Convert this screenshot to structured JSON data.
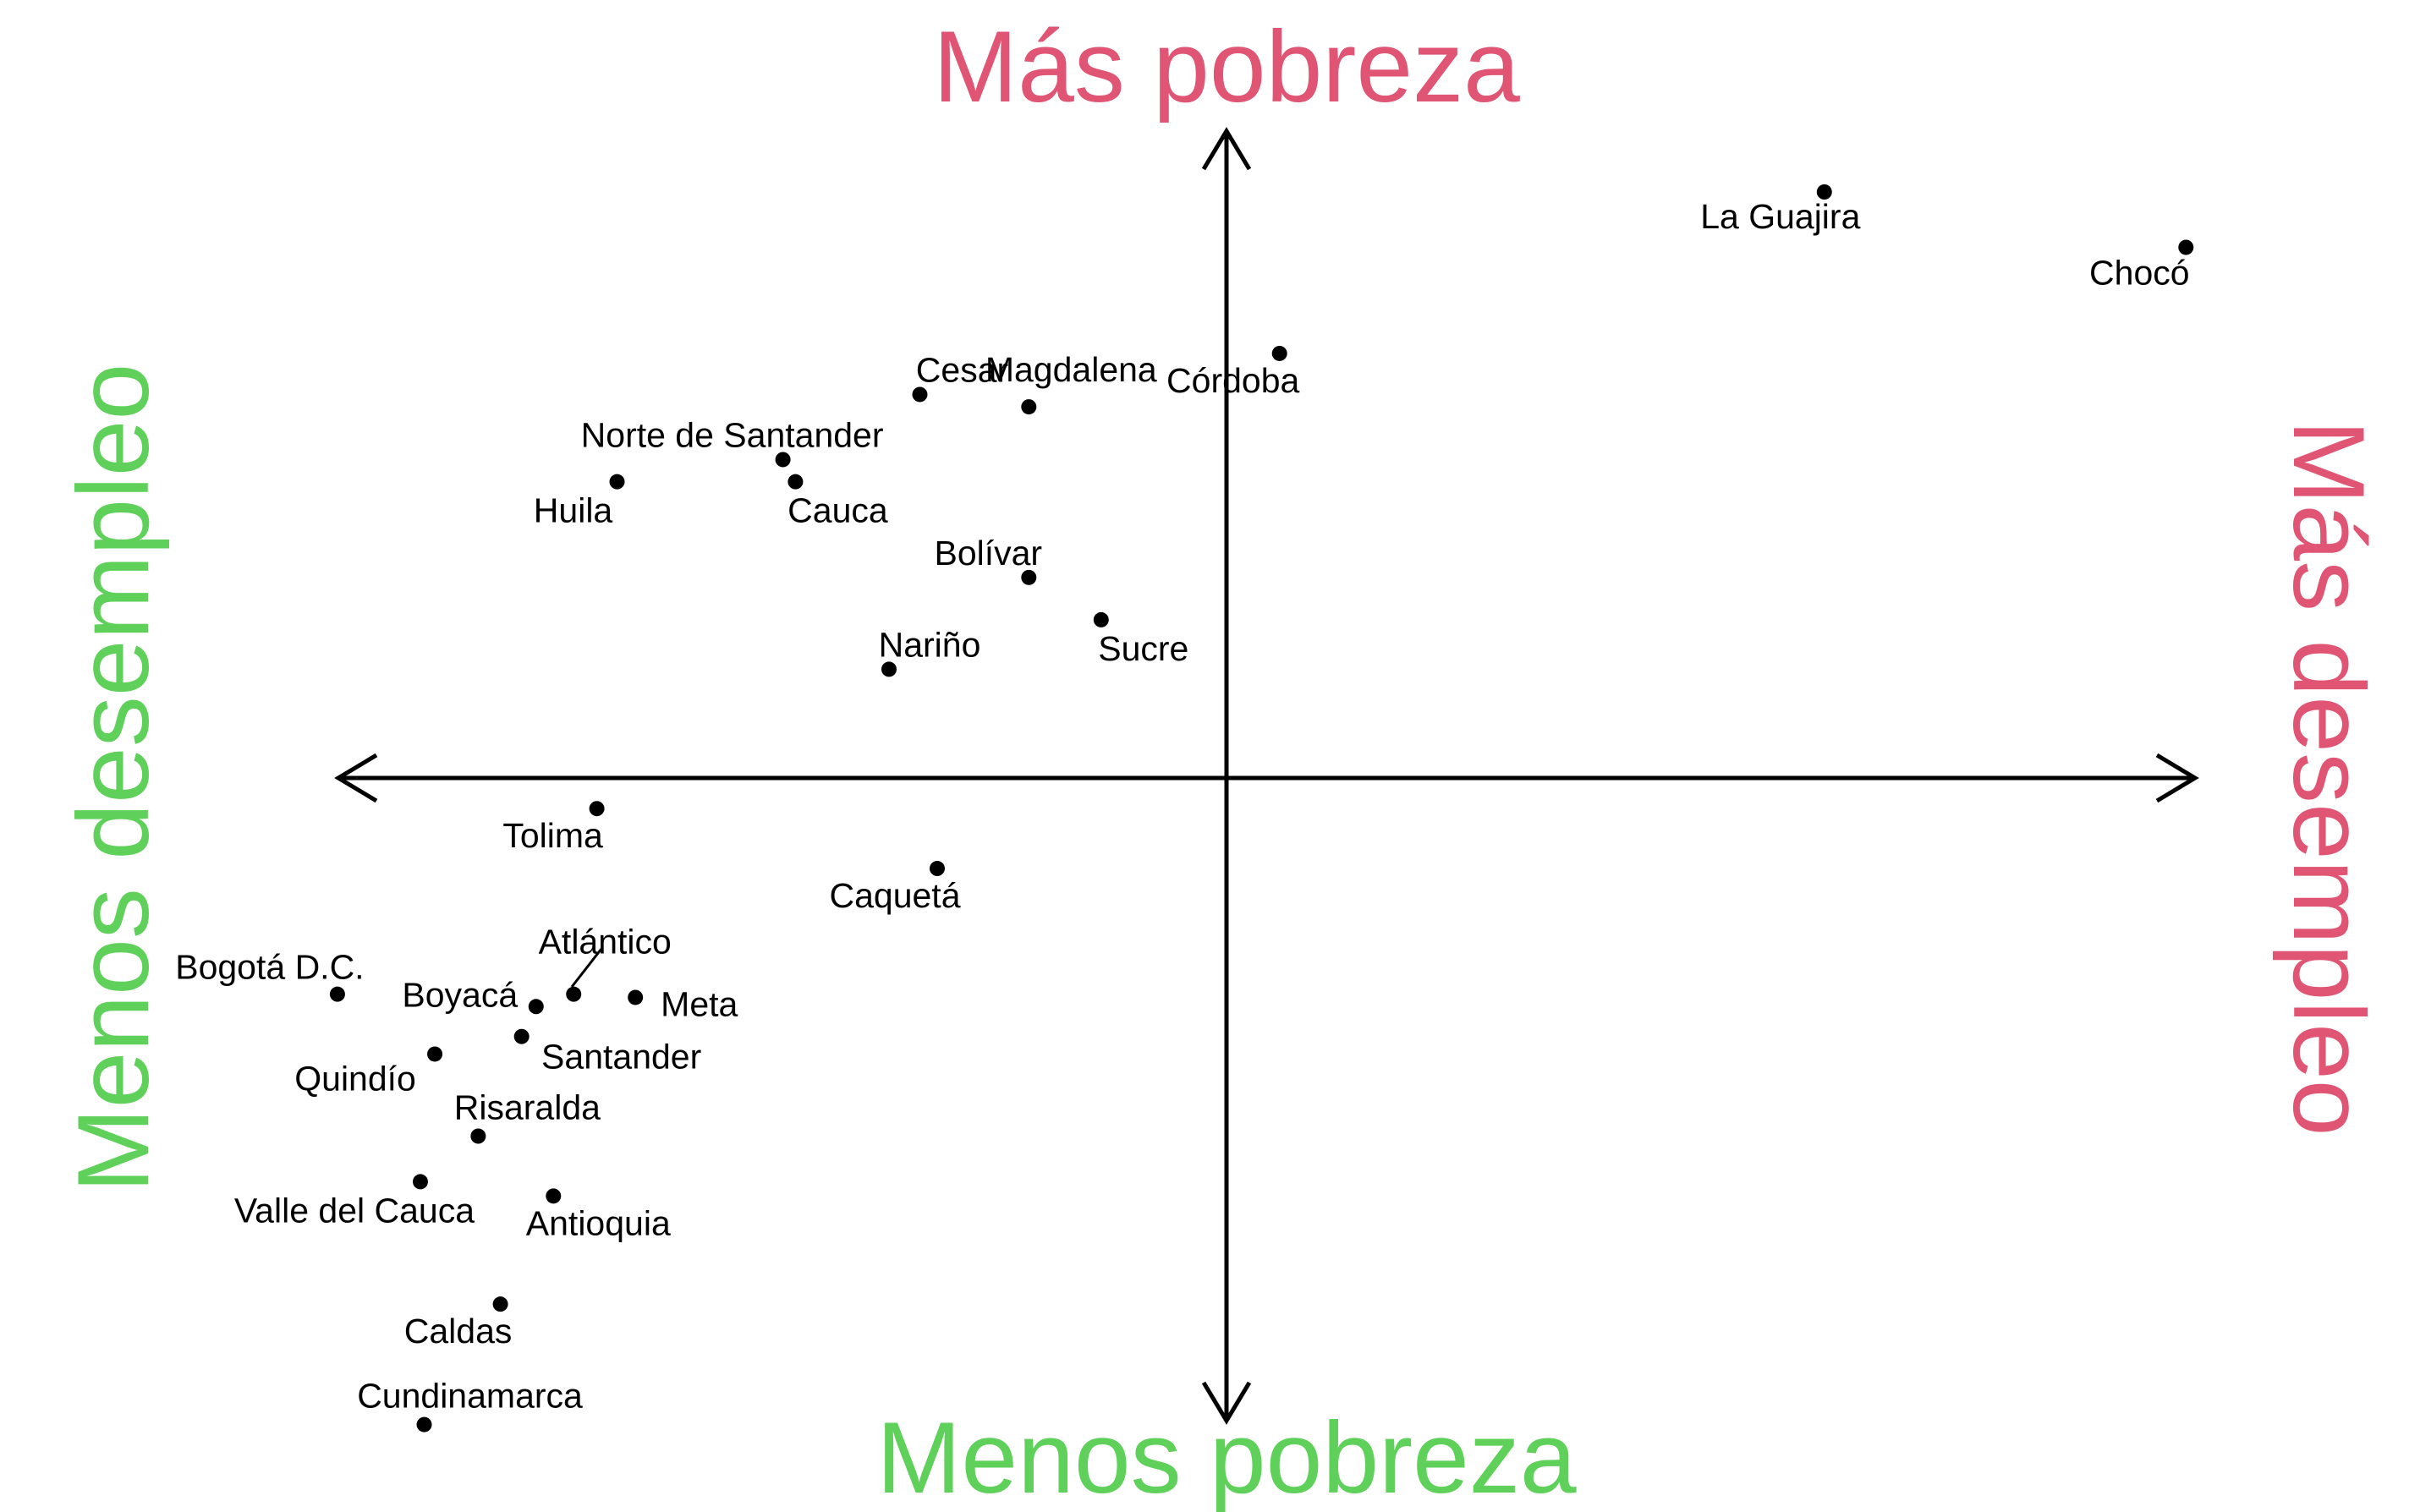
{
  "colors": {
    "more": "#e05573",
    "less": "#5fd15a",
    "ink": "#000000"
  },
  "chart_data": {
    "type": "scatter",
    "axis_titles": {
      "top": "Más pobreza",
      "bottom": "Menos pobreza",
      "left": "Menos desempleo",
      "right": "Más desempleo"
    },
    "points": [
      {
        "label": "La Guajira",
        "x": 0.62,
        "y": 0.9
      },
      {
        "label": "Chocó",
        "x": 0.995,
        "y": 0.815
      },
      {
        "label": "Magdalena",
        "x": -0.205,
        "y": 0.57
      },
      {
        "label": "Córdoba",
        "x": 0.055,
        "y": 0.652
      },
      {
        "label": "Cesar",
        "x": -0.318,
        "y": 0.589
      },
      {
        "label": "Norte de Santander",
        "x": -0.46,
        "y": 0.489
      },
      {
        "label": "Cauca",
        "x": -0.447,
        "y": 0.455
      },
      {
        "label": "Huila",
        "x": -0.632,
        "y": 0.455
      },
      {
        "label": "Bolívar",
        "x": -0.205,
        "y": 0.308
      },
      {
        "label": "Sucre",
        "x": -0.13,
        "y": 0.243
      },
      {
        "label": "Nariño",
        "x": -0.35,
        "y": 0.167
      },
      {
        "label": "Tolima",
        "x": -0.653,
        "y": -0.047
      },
      {
        "label": "Caquetá",
        "x": -0.3,
        "y": -0.139
      },
      {
        "label": "Atlántico",
        "x": -0.677,
        "y": -0.332
      },
      {
        "label": "Meta",
        "x": -0.613,
        "y": -0.337
      },
      {
        "label": "Bogotá D.C.",
        "x": -0.922,
        "y": -0.332
      },
      {
        "label": "Boyacá",
        "x": -0.716,
        "y": -0.351
      },
      {
        "label": "Santander",
        "x": -0.731,
        "y": -0.397
      },
      {
        "label": "Quindío",
        "x": -0.821,
        "y": -0.424
      },
      {
        "label": "Risaralda",
        "x": -0.776,
        "y": -0.55
      },
      {
        "label": "Valle del Cauca",
        "x": -0.836,
        "y": -0.62
      },
      {
        "label": "Antioquia",
        "x": -0.698,
        "y": -0.642
      },
      {
        "label": "Caldas",
        "x": -0.753,
        "y": -0.808
      },
      {
        "label": "Cundinamarca",
        "x": -0.832,
        "y": -0.993
      }
    ]
  }
}
